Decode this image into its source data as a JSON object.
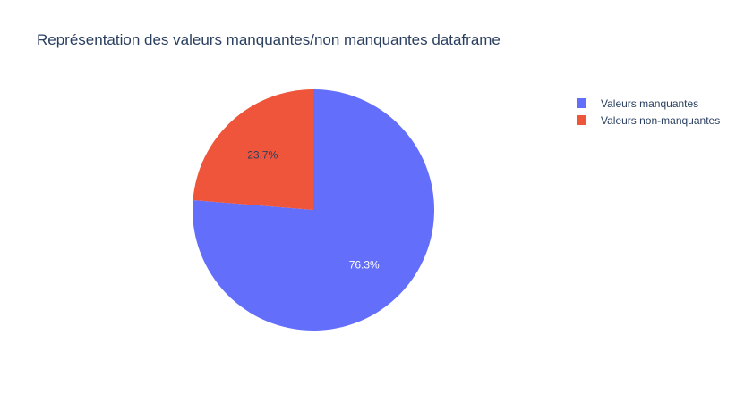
{
  "chart_data": {
    "type": "pie",
    "title": "Représentation des valeurs manquantes/non manquantes dataframe",
    "labels": [
      "Valeurs manquantes",
      "Valeurs non-manquantes"
    ],
    "values": [
      76.3,
      23.7
    ],
    "value_labels": [
      "76.3%",
      "23.7%"
    ],
    "colors": [
      "#636efa",
      "#ef553b"
    ],
    "label_colors": [
      "#ffffff",
      "#2a3f5f"
    ],
    "legend_position": "top-right"
  }
}
